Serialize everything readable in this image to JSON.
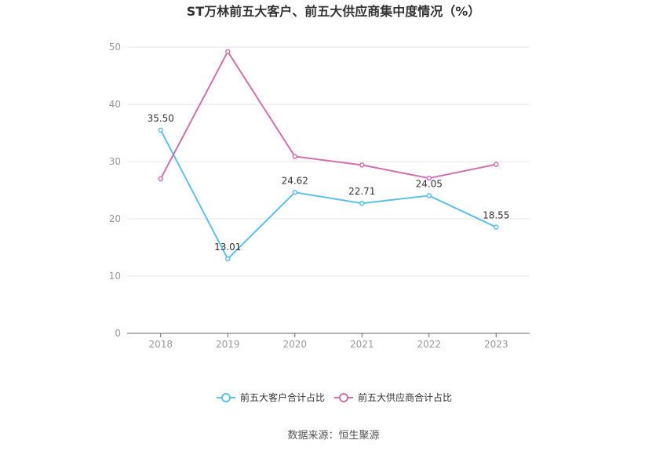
{
  "chart_data": {
    "type": "line",
    "title": "ST万林前五大客户、前五大供应商集中度情况（%）",
    "categories": [
      "2018",
      "2019",
      "2020",
      "2021",
      "2022",
      "2023"
    ],
    "ylim": [
      0,
      50
    ],
    "yticks": [
      0,
      10,
      20,
      30,
      40,
      50
    ],
    "grid": true,
    "legend_position": "bottom",
    "series": [
      {
        "name": "前五大客户合计占比",
        "color": "#5bc0eb",
        "values": [
          35.5,
          13.01,
          24.62,
          22.71,
          24.05,
          18.55
        ],
        "labels": [
          "35.50",
          "13.01",
          "24.62",
          "22.71",
          "24.05",
          "18.55"
        ]
      },
      {
        "name": "前五大供应商合计占比",
        "color": "#d36fb1",
        "values": [
          27.0,
          49.2,
          30.9,
          29.4,
          27.1,
          29.5
        ]
      }
    ],
    "source": "数据来源：恒生聚源"
  }
}
